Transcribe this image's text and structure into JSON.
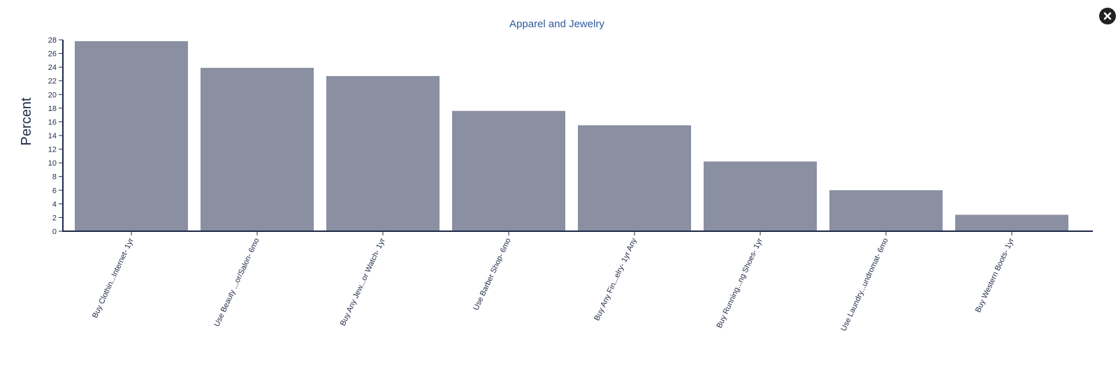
{
  "window": {
    "close_icon": "close-icon"
  },
  "colors": {
    "bar": "#8a8fa2",
    "axis": "#1f2a48",
    "title": "#2c5aa0"
  },
  "chart_data": {
    "type": "bar",
    "title": "Apparel and Jewelry",
    "xlabel": "",
    "ylabel": "Percent",
    "ylim": [
      0,
      28
    ],
    "yticks": [
      0,
      2,
      4,
      6,
      8,
      10,
      12,
      14,
      16,
      18,
      20,
      22,
      24,
      26,
      28
    ],
    "grid": false,
    "categories": [
      "Buy Clothin...Internet- 1yr",
      "Use Beauty ...or/Salon- 6mo",
      "Buy Any Jew...or Watch- 1yr",
      "Use Barber Shop- 6mo",
      "Buy Any Fin...elry- 1yr Any",
      "Buy Running...ng Shoes- 1yr",
      "Use Laundry...undromat- 6mo",
      "Buy Western Boots- 1yr"
    ],
    "values": [
      27.8,
      23.9,
      22.7,
      17.6,
      15.5,
      10.2,
      6.0,
      2.4
    ]
  }
}
